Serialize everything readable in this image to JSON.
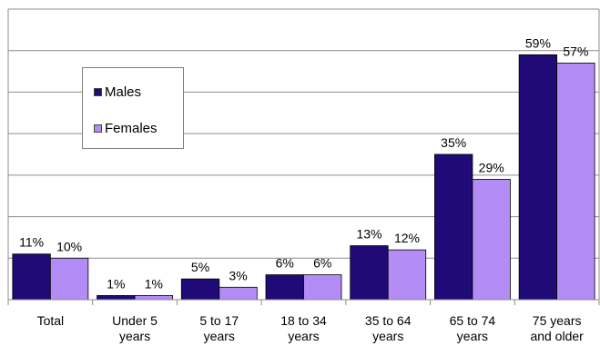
{
  "chart_data": {
    "type": "bar",
    "title": "",
    "xlabel": "",
    "ylabel": "",
    "ylim": [
      0,
      70
    ],
    "grid": true,
    "legend_position": "upper-left",
    "categories": [
      [
        "Total"
      ],
      [
        "Under 5",
        "years"
      ],
      [
        "5 to 17",
        "years"
      ],
      [
        "18 to 34",
        "years"
      ],
      [
        "35 to 64",
        "years"
      ],
      [
        "65 to 74",
        "years"
      ],
      [
        "75 years",
        "and older"
      ]
    ],
    "series": [
      {
        "name": "Males",
        "color": "#1f0a78",
        "values": [
          11,
          1,
          5,
          6,
          13,
          35,
          59
        ],
        "labels": [
          "11%",
          "1%",
          "5%",
          "6%",
          "13%",
          "35%",
          "59%"
        ]
      },
      {
        "name": "Females",
        "color": "#b48cf5",
        "values": [
          10,
          1,
          3,
          6,
          12,
          29,
          57
        ],
        "labels": [
          "10%",
          "1%",
          "3%",
          "6%",
          "12%",
          "29%",
          "57%"
        ]
      }
    ]
  }
}
